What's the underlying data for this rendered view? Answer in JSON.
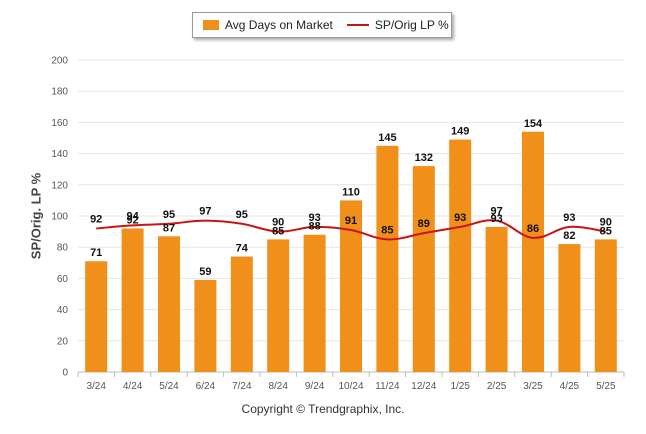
{
  "chart_data": {
    "type": "bar",
    "categories": [
      "3/24",
      "4/24",
      "5/24",
      "6/24",
      "7/24",
      "8/24",
      "9/24",
      "10/24",
      "11/24",
      "12/24",
      "1/25",
      "2/25",
      "3/25",
      "4/25",
      "5/25"
    ],
    "series": [
      {
        "name": "Avg Days on Market",
        "type": "bar",
        "values": [
          71,
          92,
          87,
          59,
          74,
          85,
          88,
          110,
          145,
          132,
          149,
          93,
          154,
          82,
          85
        ]
      },
      {
        "name": "SP/Orig LP %",
        "type": "line",
        "values": [
          92,
          94,
          95,
          97,
          95,
          90,
          93,
          91,
          85,
          89,
          93,
          97,
          86,
          93,
          90
        ]
      }
    ],
    "ylabel": "SP/Orig. LP %",
    "ylim": [
      0,
      200
    ],
    "yticks": [
      0,
      20,
      40,
      60,
      80,
      100,
      120,
      140,
      160,
      180,
      200
    ],
    "grid": true,
    "legend": "top-center",
    "colors": {
      "bar": "#f0901a",
      "line": "#c81414"
    }
  },
  "footer": {
    "copyright": "Copyright © Trendgraphix, Inc."
  }
}
